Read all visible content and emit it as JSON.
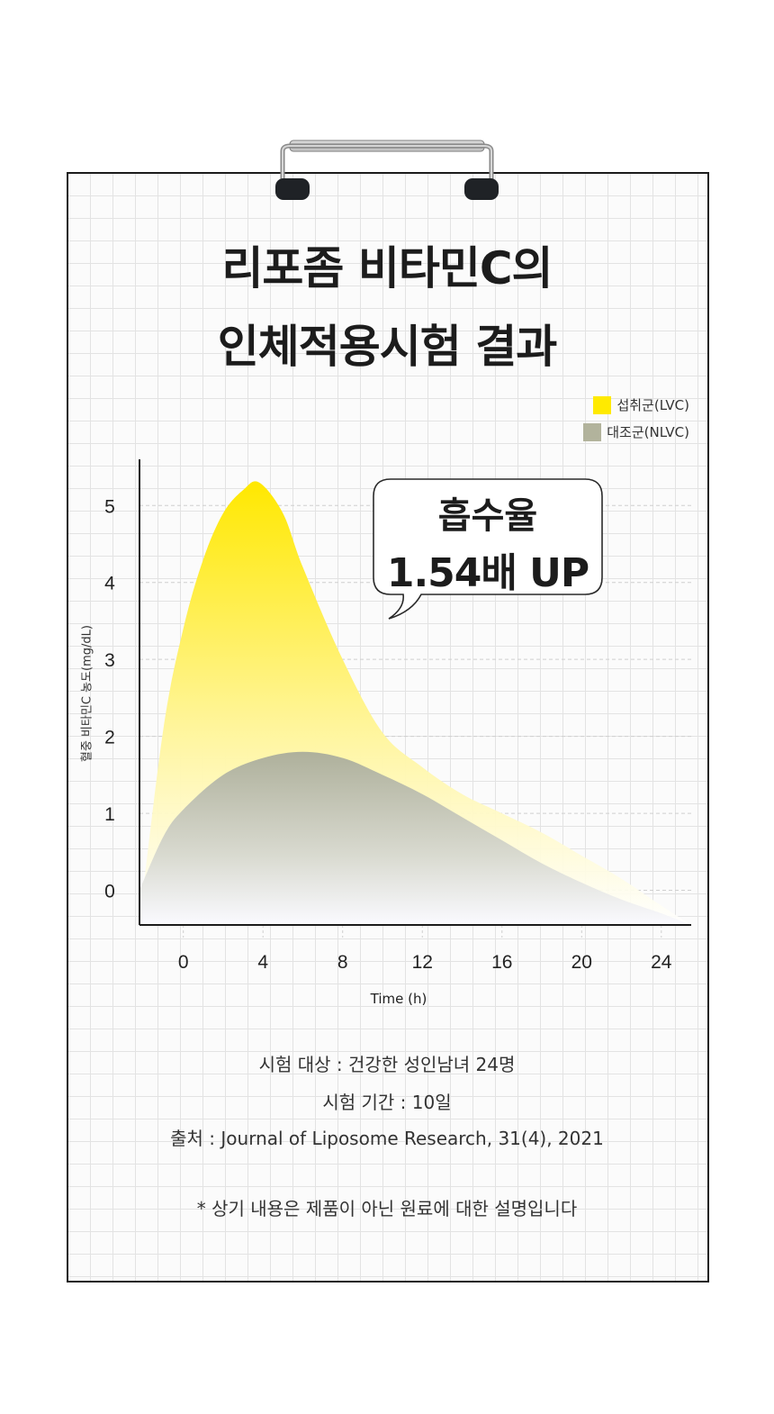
{
  "title": {
    "line1": "리포좀 비타민C의",
    "line2": "인체적용시험 결과"
  },
  "colors": {
    "lvc": "#ffea00",
    "nlvc": "#b2b39c"
  },
  "callout": {
    "line1": "흡수율",
    "line2": "1.54배 UP"
  },
  "info": {
    "subjects": "시험 대상 : 건강한 성인남녀 24명",
    "period": "시험 기간 : 10일",
    "source": "출처 : Journal of Liposome Research, 31(4), 2021",
    "note": "* 상기 내용은 제품이 아닌 원료에 대한 설명입니다"
  },
  "chart_data": {
    "type": "area",
    "xlabel": "Time (h)",
    "ylabel": "혈중 비타민C 농도(mg/dL)",
    "xticks": [
      0,
      4,
      8,
      12,
      16,
      20,
      24
    ],
    "yticks": [
      0,
      1,
      2,
      3,
      4,
      5
    ],
    "xlim": [
      -2.2,
      25.5
    ],
    "ylim": [
      -0.45,
      5.6
    ],
    "grid": true,
    "legend_position": "top-right",
    "series": [
      {
        "name": "섭취군(LVC)",
        "color": "#ffea00",
        "points": [
          [
            -2.2,
            -0.4
          ],
          [
            -1,
            2.1
          ],
          [
            0,
            3.4
          ],
          [
            1,
            4.3
          ],
          [
            2,
            4.9
          ],
          [
            3,
            5.2
          ],
          [
            3.8,
            5.3
          ],
          [
            5,
            4.9
          ],
          [
            6,
            4.2
          ],
          [
            8,
            3.0
          ],
          [
            10,
            2.05
          ],
          [
            12,
            1.6
          ],
          [
            14,
            1.25
          ],
          [
            16,
            1.0
          ],
          [
            18,
            0.75
          ],
          [
            20,
            0.45
          ],
          [
            22,
            0.15
          ],
          [
            24,
            -0.2
          ],
          [
            25.5,
            -0.45
          ]
        ]
      },
      {
        "name": "대조군(NLVC)",
        "color": "#b2b39c",
        "points": [
          [
            -2.2,
            0.0
          ],
          [
            -1,
            0.7
          ],
          [
            0,
            1.05
          ],
          [
            2,
            1.5
          ],
          [
            4,
            1.72
          ],
          [
            6,
            1.8
          ],
          [
            8,
            1.72
          ],
          [
            10,
            1.5
          ],
          [
            12,
            1.25
          ],
          [
            14,
            0.95
          ],
          [
            16,
            0.65
          ],
          [
            18,
            0.35
          ],
          [
            20,
            0.1
          ],
          [
            22,
            -0.12
          ],
          [
            24,
            -0.3
          ],
          [
            25.5,
            -0.45
          ]
        ]
      }
    ]
  }
}
